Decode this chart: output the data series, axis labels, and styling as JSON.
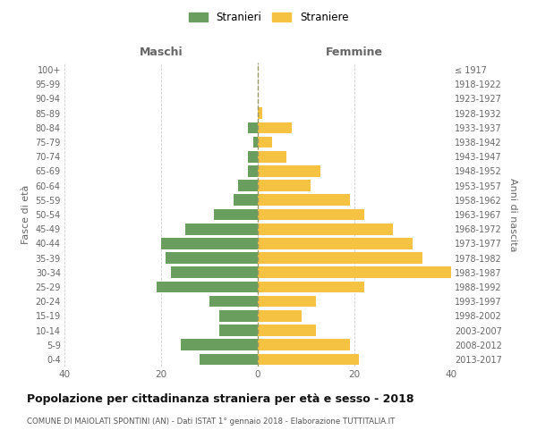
{
  "age_groups": [
    "0-4",
    "5-9",
    "10-14",
    "15-19",
    "20-24",
    "25-29",
    "30-34",
    "35-39",
    "40-44",
    "45-49",
    "50-54",
    "55-59",
    "60-64",
    "65-69",
    "70-74",
    "75-79",
    "80-84",
    "85-89",
    "90-94",
    "95-99",
    "100+"
  ],
  "birth_years": [
    "2013-2017",
    "2008-2012",
    "2003-2007",
    "1998-2002",
    "1993-1997",
    "1988-1992",
    "1983-1987",
    "1978-1982",
    "1973-1977",
    "1968-1972",
    "1963-1967",
    "1958-1962",
    "1953-1957",
    "1948-1952",
    "1943-1947",
    "1938-1942",
    "1933-1937",
    "1928-1932",
    "1923-1927",
    "1918-1922",
    "≤ 1917"
  ],
  "maschi": [
    12,
    16,
    8,
    8,
    10,
    21,
    18,
    19,
    20,
    15,
    9,
    5,
    4,
    2,
    2,
    1,
    2,
    0,
    0,
    0,
    0
  ],
  "femmine": [
    21,
    19,
    12,
    9,
    12,
    22,
    40,
    34,
    32,
    28,
    22,
    19,
    11,
    13,
    6,
    3,
    7,
    1,
    0,
    0,
    0
  ],
  "maschi_color": "#6a9e5f",
  "femmine_color": "#f5c242",
  "title": "Popolazione per cittadinanza straniera per età e sesso - 2018",
  "subtitle": "COMUNE DI MAIOLATI SPONTINI (AN) - Dati ISTAT 1° gennaio 2018 - Elaborazione TUTTITALIA.IT",
  "ylabel_left": "Fasce di età",
  "ylabel_right": "Anni di nascita",
  "header_left": "Maschi",
  "header_right": "Femmine",
  "legend_stranieri": "Stranieri",
  "legend_straniere": "Straniere",
  "xlim": 40,
  "bg_color": "#ffffff",
  "grid_color": "#cccccc"
}
